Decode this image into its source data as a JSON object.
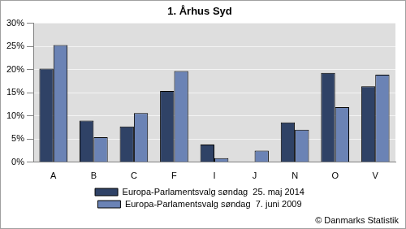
{
  "chart_data": {
    "type": "bar",
    "title": "1. Århus Syd",
    "categories": [
      "A",
      "B",
      "C",
      "F",
      "I",
      "J",
      "N",
      "O",
      "V"
    ],
    "series": [
      {
        "name": "Europa-Parlamentsvalg søndag  25. maj 2014",
        "color": "#2f4266",
        "values": [
          20.2,
          9.0,
          7.7,
          15.4,
          3.8,
          null,
          8.6,
          19.3,
          16.4
        ]
      },
      {
        "name": "Europa-Parlamentsvalg søndag  7. juni 2009",
        "color": "#6b83b5",
        "values": [
          25.3,
          5.4,
          10.6,
          19.7,
          0.9,
          2.5,
          7.0,
          11.9,
          18.9
        ]
      }
    ],
    "ylim": [
      0,
      30
    ],
    "yticks": [
      {
        "value": 0,
        "label": "0%"
      },
      {
        "value": 5,
        "label": "5%"
      },
      {
        "value": 10,
        "label": "10%"
      },
      {
        "value": 15,
        "label": "15%"
      },
      {
        "value": 20,
        "label": "20%"
      },
      {
        "value": 25,
        "label": "25%"
      },
      {
        "value": 30,
        "label": "30%"
      }
    ],
    "grid": true,
    "legend": "bottom",
    "annotations": [
      "© Danmarks Statistik"
    ]
  }
}
